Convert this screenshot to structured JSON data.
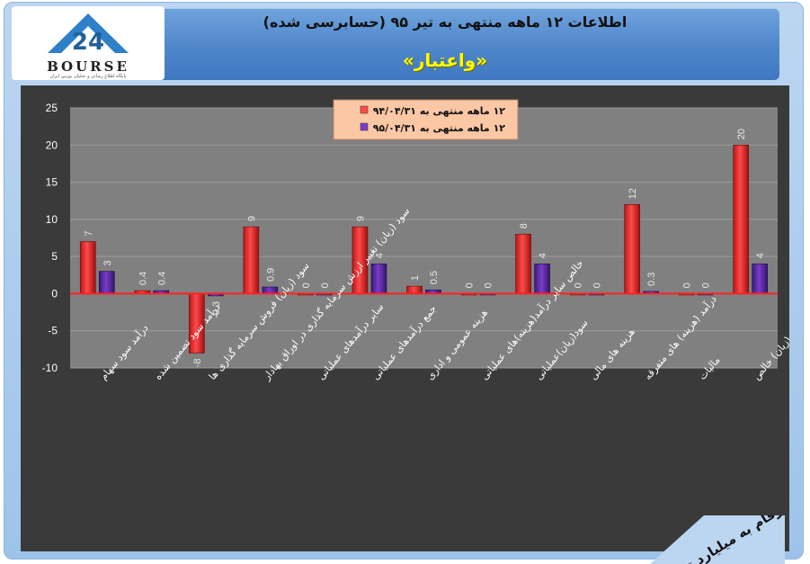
{
  "header": {
    "title": "اطلاعات ۱۲ ماهه منتهی به تیر ۹۵ (حسابرسی شده)",
    "company": "«واعتبار»"
  },
  "logo": {
    "name": "BOURSE",
    "tagline": "پایگاه اطلاع رسانی و تحلیلی بورس ایران"
  },
  "units_note": "ارقام به میلیارد تومان",
  "colors": {
    "series1": "#ff4a4a",
    "series2": "#7a3cc8",
    "zero_line": "#ff2020",
    "plot_bg": "#808080",
    "chart_bg": "#3a3a3a"
  },
  "chart_data": {
    "type": "bar",
    "ylim": [
      -10,
      25
    ],
    "yticks": [
      -10,
      -5,
      0,
      5,
      10,
      15,
      20,
      25
    ],
    "grid": true,
    "legend_position": "top-center",
    "categories": [
      "درآمد سود سهام",
      "درآمد سود تضمین شده",
      "سود (زیان) فروش سرمایه گذاری ها",
      "سود (زیان) تغییر ارزش سرمایه گذاری در اوراق بهادار",
      "سایر درآمدهای عملیاتی",
      "جمع درآمدهای عملیاتی",
      "هزینه عمومی و اداری",
      "خالص سایر درآمد(هزینه)های عملیاتی",
      "سود(زیان)عملیاتی",
      "هزینه های مالی",
      "درآمد (هزینه) های متفرقه",
      "مالیات",
      "سود(زیان) خالص"
    ],
    "series": [
      {
        "name": "۱۲ ماهه منتهی به ۹۴/۰۴/۳۱",
        "values": [
          7,
          0.4,
          -8,
          9,
          0,
          9,
          1,
          0,
          8,
          0,
          12,
          0,
          20
        ]
      },
      {
        "name": "۱۲ ماهه منتهی به ۹۵/۰۴/۳۱",
        "values": [
          3,
          0.4,
          -0.3,
          0.9,
          0,
          4,
          0.5,
          0,
          4,
          0,
          0.3,
          0,
          4
        ]
      }
    ]
  }
}
